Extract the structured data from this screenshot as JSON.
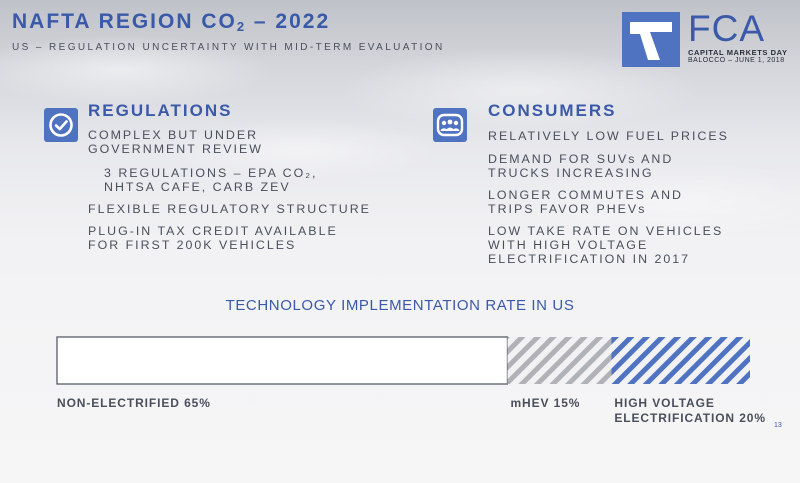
{
  "header": {
    "title_prefix": "NAFTA REGION CO",
    "title_sub": "2",
    "title_suffix": " – 2022",
    "subtitle": "US – REGULATION UNCERTAINTY WITH MID-TERM EVALUATION"
  },
  "logo": {
    "word": "FCA",
    "event": "CAPITAL MARKETS DAY",
    "date": "BALOCCO – JUNE 1, 2018"
  },
  "regulations": {
    "icon": "checkmark-icon",
    "heading": "REGULATIONS",
    "items": [
      {
        "line1": "COMPLEX BUT UNDER",
        "line2": "GOVERNMENT REVIEW"
      },
      {
        "line1": "3 REGULATIONS – EPA CO₂,",
        "line2": "NHTSA CAFE, CARB ZEV"
      },
      {
        "line1": "FLEXIBLE REGULATORY STRUCTURE"
      },
      {
        "line1": "PLUG-IN TAX CREDIT AVAILABLE",
        "line2": "FOR FIRST 200K VEHICLES"
      }
    ]
  },
  "consumers": {
    "icon": "people-group-icon",
    "heading": "CONSUMERS",
    "items": [
      {
        "line1": "RELATIVELY LOW FUEL PRICES"
      },
      {
        "line1": "DEMAND FOR SUVs AND",
        "line2": "TRUCKS INCREASING"
      },
      {
        "line1": "LONGER COMMUTES AND",
        "line2": "TRIPS FAVOR PHEVs"
      },
      {
        "line1": "LOW TAKE RATE ON VEHICLES",
        "line2": "WITH HIGH VOLTAGE",
        "line3": "ELECTRIFICATION IN 2017"
      }
    ]
  },
  "chart_data": {
    "type": "bar",
    "orientation": "horizontal-stacked",
    "title": "TECHNOLOGY IMPLEMENTATION RATE IN US",
    "unit": "%",
    "total": 100,
    "segments": [
      {
        "name": "NON-ELECTRIFIED",
        "value": 65,
        "label_lines": [
          "NON-ELECTRIFIED 65%"
        ],
        "fill": "white-outline",
        "color": "#4a4f5c"
      },
      {
        "name": "mHEV",
        "value": 15,
        "label_lines": [
          "mHEV 15%"
        ],
        "fill": "grey-hatch",
        "color": "#b0b2b7"
      },
      {
        "name": "HIGH VOLTAGE ELECTRIFICATION",
        "value": 20,
        "label_lines": [
          "HIGH VOLTAGE",
          "ELECTRIFICATION 20%"
        ],
        "fill": "blue-hatch",
        "color": "#4f73c0"
      }
    ]
  },
  "page_number": "13"
}
